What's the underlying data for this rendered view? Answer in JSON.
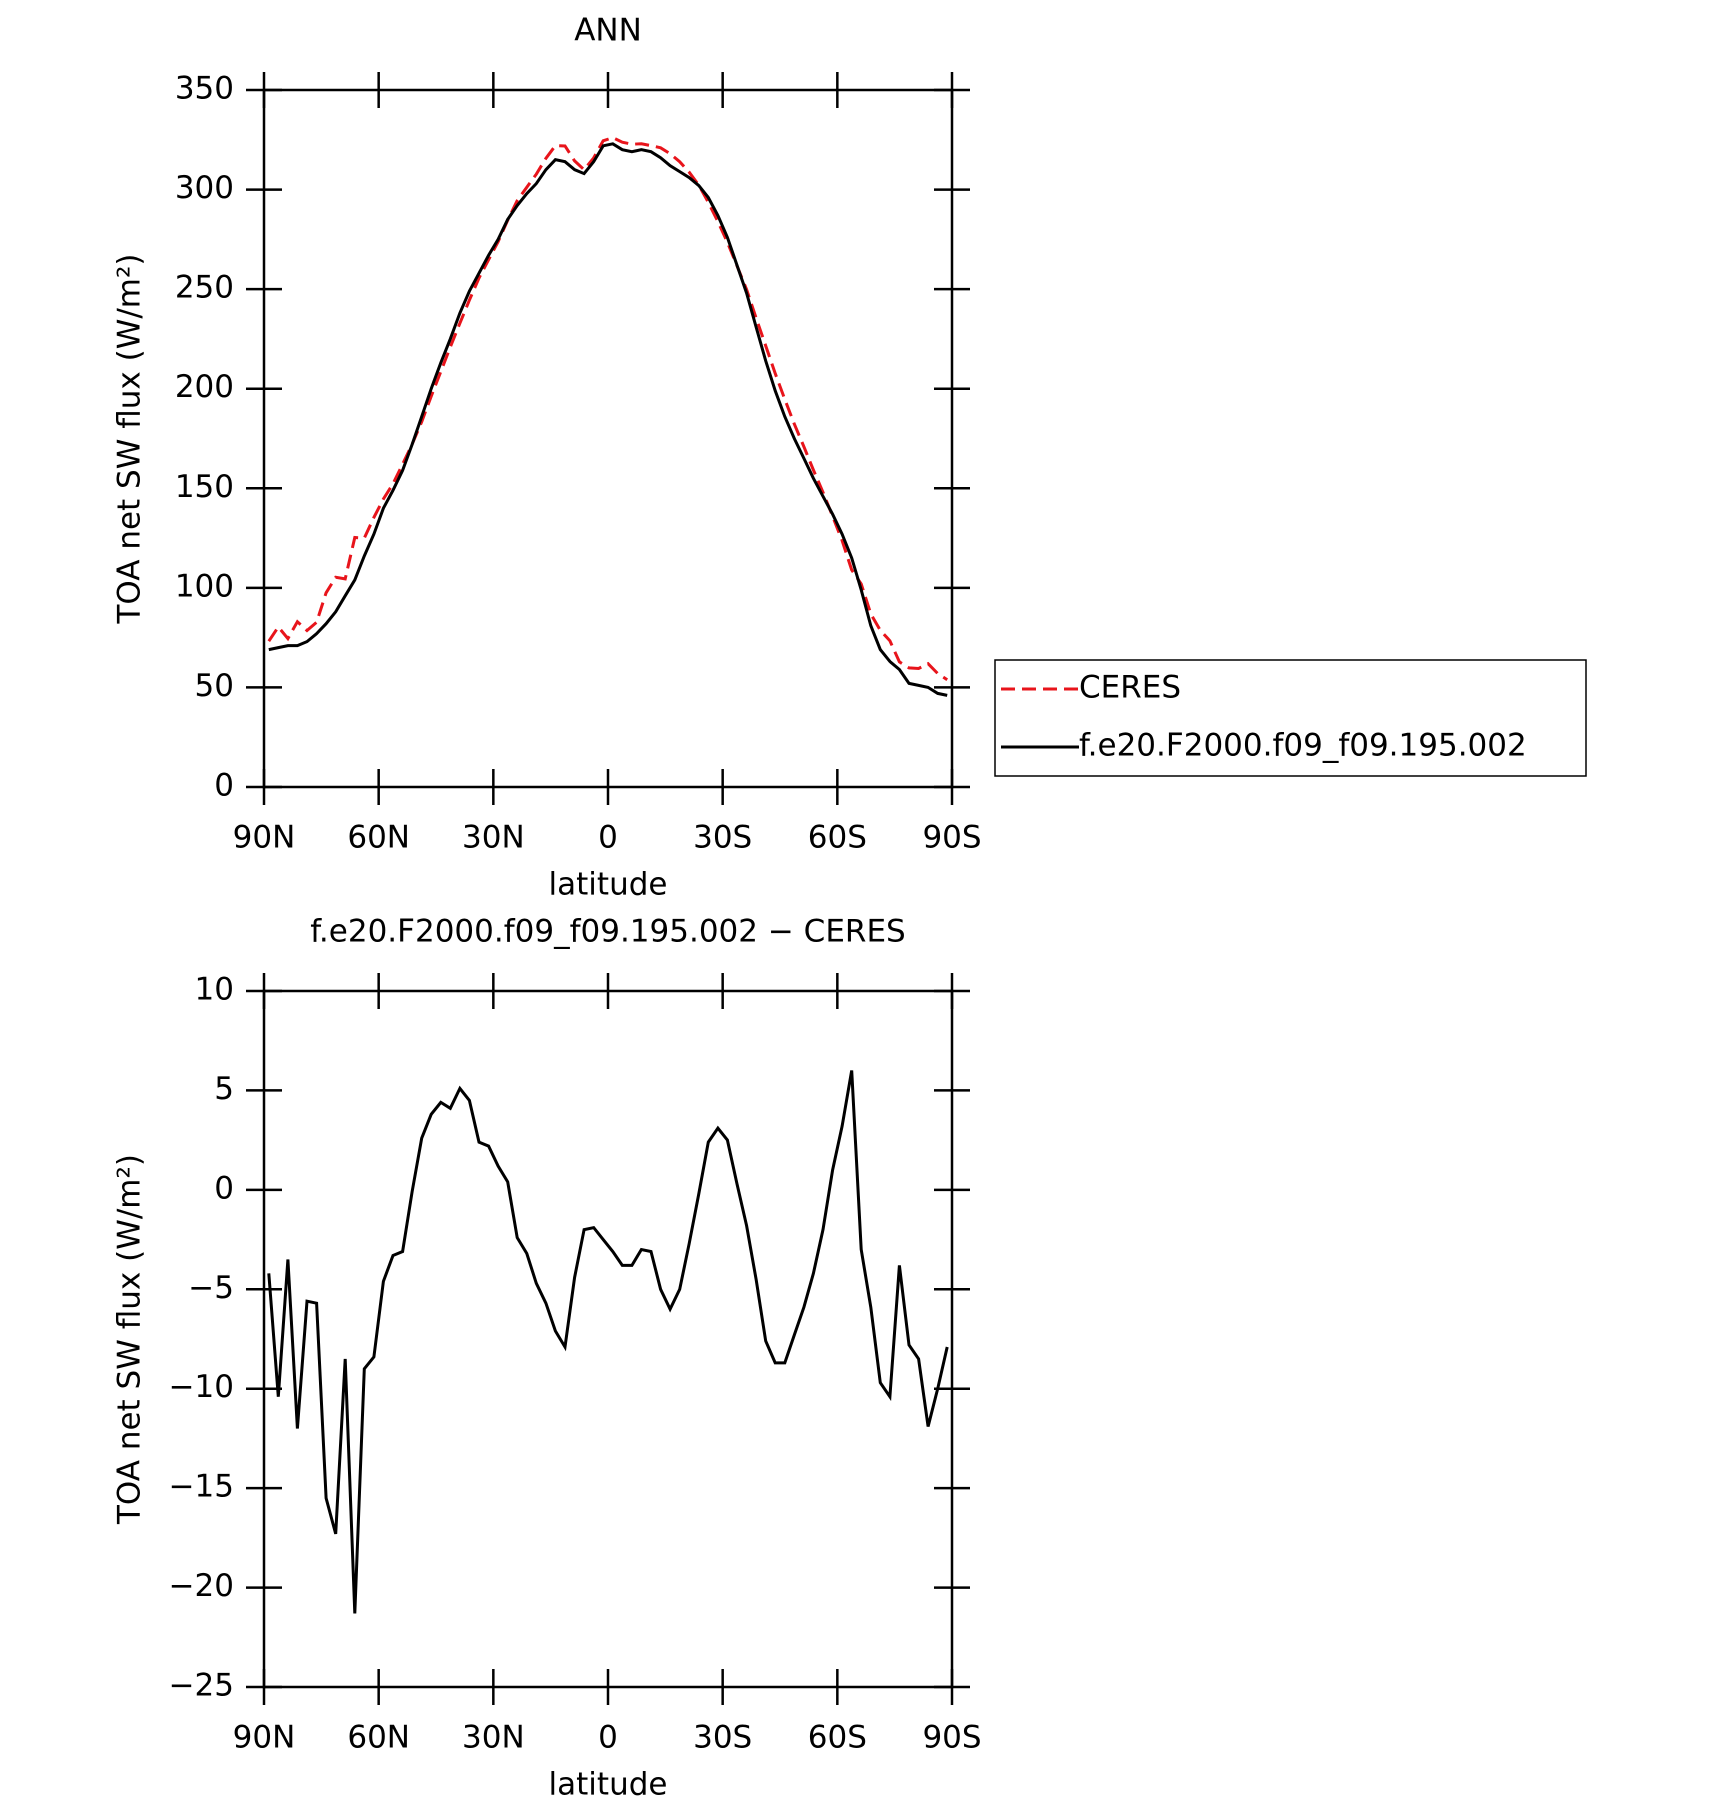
{
  "chart_data": [
    {
      "type": "line",
      "title": "ANN",
      "xlabel": "latitude",
      "ylabel": "TOA net SW flux (W/m²)",
      "x": [
        88.75,
        86.25,
        83.75,
        81.25,
        78.75,
        76.25,
        73.75,
        71.25,
        68.75,
        66.25,
        63.75,
        61.25,
        58.75,
        56.25,
        53.75,
        51.25,
        48.75,
        46.25,
        43.75,
        41.25,
        38.75,
        36.25,
        33.75,
        31.25,
        28.75,
        26.25,
        23.75,
        21.25,
        18.75,
        16.25,
        13.75,
        11.25,
        8.75,
        6.25,
        3.75,
        1.25,
        -1.25,
        -3.75,
        -6.25,
        -8.75,
        -11.25,
        -13.75,
        -16.25,
        -18.75,
        -21.25,
        -23.75,
        -26.25,
        -28.75,
        -31.25,
        -33.75,
        -36.25,
        -38.75,
        -41.25,
        -43.75,
        -46.25,
        -48.75,
        -51.25,
        -53.75,
        -56.25,
        -58.75,
        -61.25,
        -63.75,
        -66.25,
        -68.75,
        -71.25,
        -73.75,
        -76.25,
        -78.75,
        -81.25,
        -83.75,
        -86.25,
        -88.75
      ],
      "series": [
        {
          "name": "CERES",
          "color": "#e8141b",
          "line_style": "dashed",
          "values": [
            73.2,
            80.4,
            74.5,
            83,
            78.6,
            82.7,
            97.5,
            105.3,
            104.5,
            125.3,
            125,
            135.4,
            144.6,
            152.3,
            162.1,
            172.1,
            183.4,
            196.2,
            208.6,
            220.9,
            232.9,
            244.5,
            255.6,
            264.8,
            273.8,
            284.6,
            294.4,
            301.2,
            307.7,
            315.7,
            322.1,
            321.9,
            314.4,
            310,
            315.9,
            324.5,
            326.1,
            323.8,
            322.8,
            323,
            322.1,
            321,
            318,
            314,
            308.7,
            302.2,
            293.6,
            283.9,
            273.5,
            261.7,
            249.8,
            235.5,
            221.6,
            207.7,
            194.7,
            182.3,
            170.9,
            159.2,
            148,
            136,
            123.8,
            109,
            102,
            86.9,
            78.7,
            73.4,
            62.8,
            59.8,
            59.5,
            61.9,
            57,
            53.9
          ]
        },
        {
          "name": "f.e20.F2000.f09_f09.195.002",
          "color": "#000000",
          "line_style": "solid",
          "values": [
            69,
            70,
            71,
            71,
            73,
            77,
            82,
            88,
            96,
            104,
            116,
            127,
            140,
            149,
            159,
            172,
            186,
            200,
            213,
            225,
            238,
            249,
            258,
            267,
            275,
            285,
            292,
            298,
            303,
            310,
            315,
            314,
            310,
            308,
            314,
            322,
            323,
            320,
            319,
            320,
            319,
            316,
            312,
            309,
            306,
            302,
            296,
            287,
            276,
            262,
            248,
            231,
            214,
            199,
            186,
            175,
            165,
            155,
            146,
            137,
            127,
            115,
            99,
            81,
            69,
            63,
            59,
            52,
            51,
            50,
            47,
            46
          ]
        }
      ],
      "xlim": [
        90,
        -90
      ],
      "ylim": [
        0,
        350
      ],
      "xticks": [
        {
          "value": 90,
          "label": "90N"
        },
        {
          "value": 60,
          "label": "60N"
        },
        {
          "value": 30,
          "label": "30N"
        },
        0,
        {
          "value": -30,
          "label": "30S"
        },
        {
          "value": -60,
          "label": "60S"
        },
        {
          "value": -90,
          "label": "90S"
        }
      ],
      "yticks": [
        0,
        50,
        100,
        150,
        200,
        250,
        300,
        350
      ],
      "legend": "right"
    },
    {
      "type": "line",
      "title": "f.e20.F2000.f09_f09.195.002 − CERES",
      "xlabel": "latitude",
      "ylabel": "TOA net SW flux (W/m²)",
      "x": [
        88.75,
        86.25,
        83.75,
        81.25,
        78.75,
        76.25,
        73.75,
        71.25,
        68.75,
        66.25,
        63.75,
        61.25,
        58.75,
        56.25,
        53.75,
        51.25,
        48.75,
        46.25,
        43.75,
        41.25,
        38.75,
        36.25,
        33.75,
        31.25,
        28.75,
        26.25,
        23.75,
        21.25,
        18.75,
        16.25,
        13.75,
        11.25,
        8.75,
        6.25,
        3.75,
        1.25,
        -1.25,
        -3.75,
        -6.25,
        -8.75,
        -11.25,
        -13.75,
        -16.25,
        -18.75,
        -21.25,
        -23.75,
        -26.25,
        -28.75,
        -31.25,
        -33.75,
        -36.25,
        -38.75,
        -41.25,
        -43.75,
        -46.25,
        -48.75,
        -51.25,
        -53.75,
        -56.25,
        -58.75,
        -61.25,
        -63.75,
        -66.25,
        -68.75,
        -71.25,
        -73.75,
        -76.25,
        -78.75,
        -81.25,
        -83.75,
        -86.25,
        -88.75
      ],
      "series": [
        {
          "color": "#000000",
          "line_style": "solid",
          "values": [
            -4.2,
            -10.4,
            -3.5,
            -12,
            -5.6,
            -5.7,
            -15.5,
            -17.3,
            -8.5,
            -21.3,
            -9,
            -8.4,
            -4.6,
            -3.3,
            -3.1,
            -0.1,
            2.6,
            3.8,
            4.4,
            4.1,
            5.1,
            4.5,
            2.4,
            2.2,
            1.2,
            0.4,
            -2.4,
            -3.2,
            -4.7,
            -5.7,
            -7.1,
            -7.9,
            -4.4,
            -2,
            -1.9,
            -2.5,
            -3.1,
            -3.8,
            -3.8,
            -3,
            -3.1,
            -5,
            -6,
            -5,
            -2.7,
            -0.2,
            2.4,
            3.1,
            2.5,
            0.3,
            -1.8,
            -4.5,
            -7.6,
            -8.7,
            -8.7,
            -7.3,
            -5.9,
            -4.2,
            -2,
            1,
            3.2,
            6,
            -3,
            -5.9,
            -9.7,
            -10.4,
            -3.8,
            -7.8,
            -8.5,
            -11.9,
            -10,
            -7.9
          ]
        }
      ],
      "xlim": [
        90,
        -90
      ],
      "ylim": [
        -25,
        10
      ],
      "xticks": [
        {
          "value": 90,
          "label": "90N"
        },
        {
          "value": 60,
          "label": "60N"
        },
        {
          "value": 30,
          "label": "30N"
        },
        0,
        {
          "value": -30,
          "label": "30S"
        },
        {
          "value": -60,
          "label": "60S"
        },
        {
          "value": -90,
          "label": "90S"
        }
      ],
      "yticks": [
        {
          "value": -25,
          "label": "−25"
        },
        {
          "value": -20,
          "label": "−20"
        },
        {
          "value": -15,
          "label": "−15"
        },
        {
          "value": -10,
          "label": "−10"
        },
        {
          "value": -5,
          "label": "−5"
        },
        0,
        5,
        10
      ]
    }
  ]
}
